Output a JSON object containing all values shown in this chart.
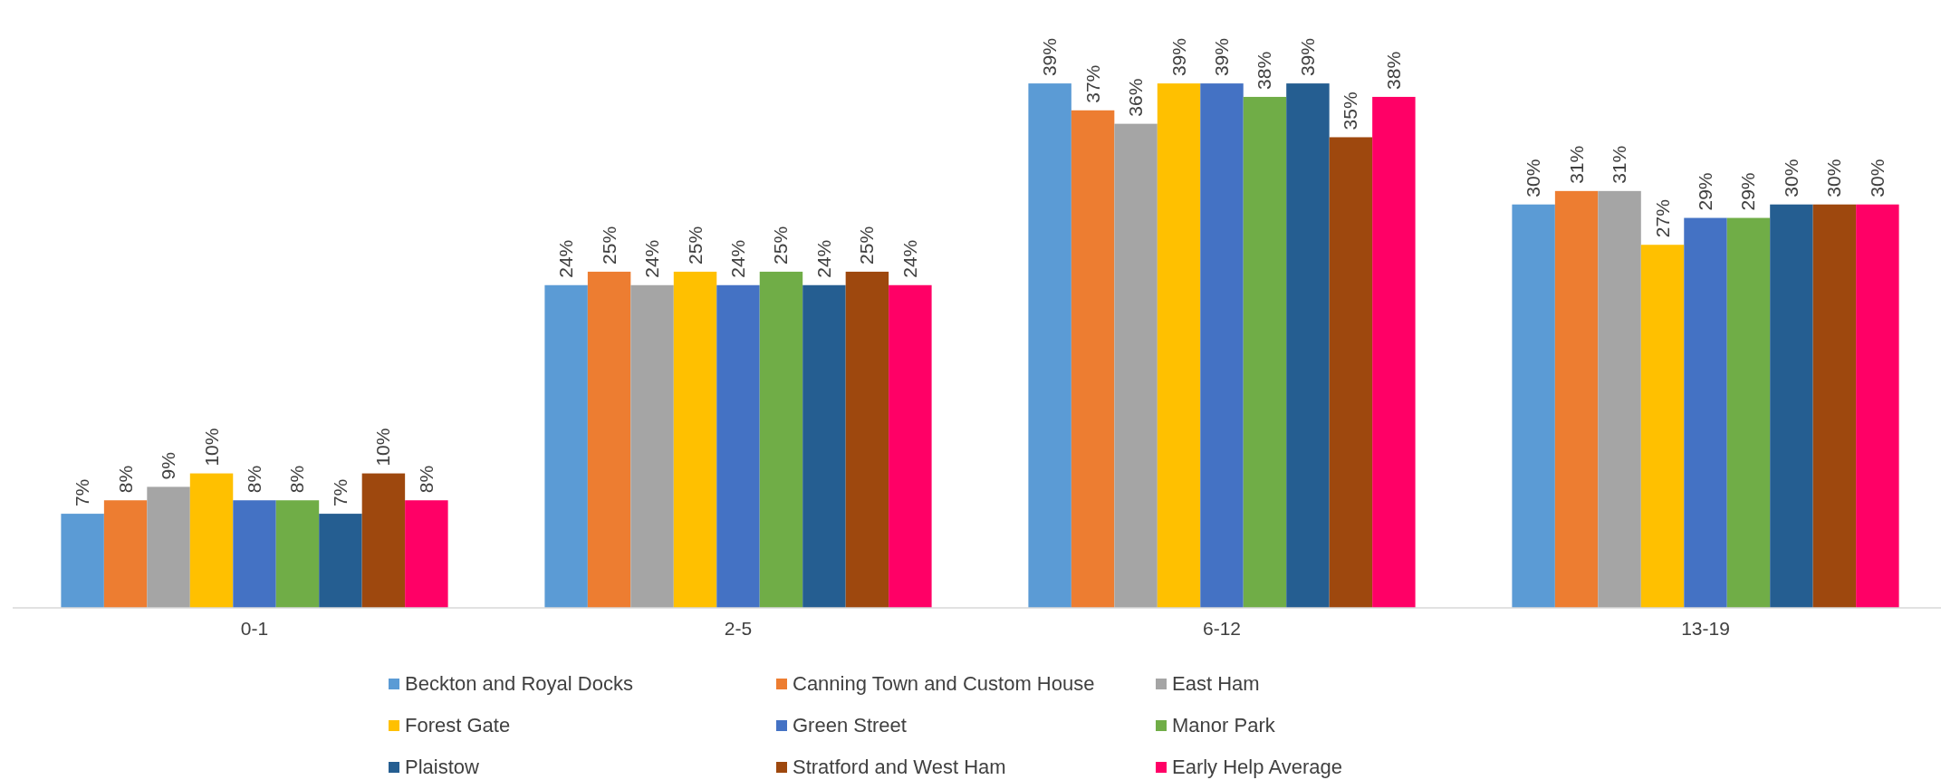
{
  "chart_data": {
    "type": "bar",
    "categories": [
      "0-1",
      "2-5",
      "6-12",
      "13-19"
    ],
    "series": [
      {
        "name": "Beckton and Royal Docks",
        "color": "#5b9bd5",
        "values": [
          7,
          24,
          39,
          30
        ],
        "value_labels": [
          "7%",
          "24%",
          "39%",
          "30%"
        ]
      },
      {
        "name": "Canning Town and Custom House",
        "color": "#ed7d31",
        "values": [
          8,
          25,
          37,
          31
        ],
        "value_labels": [
          "8%",
          "25%",
          "37%",
          "31%"
        ]
      },
      {
        "name": "East Ham",
        "color": "#a5a5a5",
        "values": [
          9,
          24,
          36,
          31
        ],
        "value_labels": [
          "9%",
          "24%",
          "36%",
          "31%"
        ]
      },
      {
        "name": "Forest Gate",
        "color": "#ffc000",
        "values": [
          10,
          25,
          39,
          27
        ],
        "value_labels": [
          "10%",
          "25%",
          "39%",
          "27%"
        ]
      },
      {
        "name": "Green Street",
        "color": "#4472c4",
        "values": [
          8,
          24,
          39,
          29
        ],
        "value_labels": [
          "8%",
          "24%",
          "39%",
          "29%"
        ]
      },
      {
        "name": "Manor Park",
        "color": "#70ad47",
        "values": [
          8,
          25,
          38,
          29
        ],
        "value_labels": [
          "8%",
          "25%",
          "38%",
          "29%"
        ]
      },
      {
        "name": "Plaistow",
        "color": "#255e91",
        "values": [
          7,
          24,
          39,
          30
        ],
        "value_labels": [
          "7%",
          "24%",
          "39%",
          "30%"
        ]
      },
      {
        "name": "Stratford and West Ham",
        "color": "#9e480e",
        "values": [
          10,
          25,
          35,
          30
        ],
        "value_labels": [
          "10%",
          "25%",
          "35%",
          "30%"
        ]
      },
      {
        "name": "Early Help Average",
        "color": "#ff0066",
        "values": [
          8,
          24,
          38,
          30
        ],
        "value_labels": [
          "8%",
          "24%",
          "38%",
          "30%"
        ]
      }
    ],
    "legend": "bottom"
  }
}
